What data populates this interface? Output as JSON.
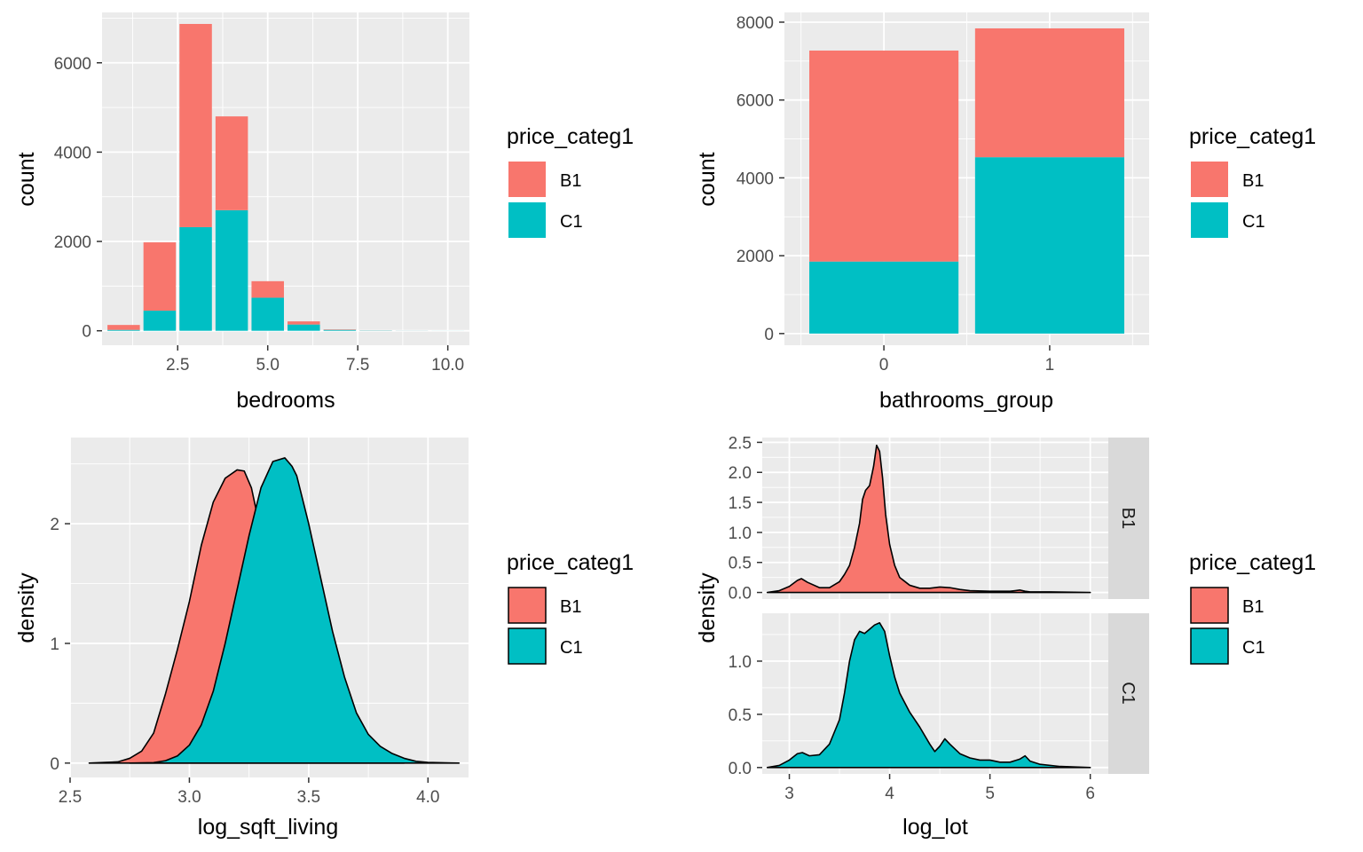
{
  "colors": {
    "B1": "#F8766D",
    "C1": "#00BFC4",
    "panel_bg": "#EBEBEB",
    "strip_bg": "#D9D9D9",
    "grid": "#FFFFFF"
  },
  "chart_data": [
    {
      "id": "bedrooms",
      "type": "bar",
      "stacked": true,
      "xlabel": "bedrooms",
      "ylabel": "count",
      "xlim": [
        0.4,
        10.6
      ],
      "ylim": [
        0,
        7200
      ],
      "x_ticks": [
        2.5,
        5.0,
        7.5,
        10.0
      ],
      "x_tick_labels": [
        "2.5",
        "5.0",
        "7.5",
        "10.0"
      ],
      "y_ticks": [
        0,
        2000,
        4000,
        6000
      ],
      "y_tick_labels": [
        "0",
        "2000",
        "4000",
        "6000"
      ],
      "x": [
        1,
        2,
        3,
        4,
        5,
        6,
        7,
        8,
        9,
        10
      ],
      "bar_width": 0.9,
      "series": [
        {
          "name": "C1",
          "values": [
            20,
            450,
            2320,
            2700,
            740,
            140,
            20,
            5,
            2,
            1
          ]
        },
        {
          "name": "B1",
          "values": [
            110,
            1530,
            4550,
            2100,
            370,
            70,
            10,
            2,
            1,
            0
          ]
        }
      ],
      "legend": {
        "title": "price_categ1",
        "entries": [
          "B1",
          "C1"
        ],
        "position": "right"
      },
      "grid": true
    },
    {
      "id": "bathrooms_group",
      "type": "bar",
      "stacked": true,
      "xlabel": "bathrooms_group",
      "ylabel": "count",
      "xlim": [
        0.4,
        2.6
      ],
      "ylim": [
        -300,
        8250
      ],
      "categories": [
        "0",
        "1"
      ],
      "x_ticks": [
        1,
        2
      ],
      "x_tick_labels": [
        "0",
        "1"
      ],
      "y_ticks": [
        0,
        2000,
        4000,
        6000,
        8000
      ],
      "y_tick_labels": [
        "0",
        "2000",
        "4000",
        "6000",
        "8000"
      ],
      "bar_width": 0.9,
      "series": [
        {
          "name": "C1",
          "values": [
            1850,
            4530
          ]
        },
        {
          "name": "B1",
          "values": [
            5420,
            3310
          ]
        }
      ],
      "legend": {
        "title": "price_categ1",
        "entries": [
          "B1",
          "C1"
        ],
        "position": "right"
      },
      "grid": true
    },
    {
      "id": "log_sqft_living",
      "type": "area",
      "subtype": "density",
      "xlabel": "log_sqft_living",
      "ylabel": "density",
      "xlim": [
        2.5,
        4.17
      ],
      "ylim": [
        -0.12,
        2.72
      ],
      "x_ticks": [
        2.5,
        3.0,
        3.5,
        4.0
      ],
      "x_tick_labels": [
        "2.5",
        "3.0",
        "3.5",
        "4.0"
      ],
      "y_ticks": [
        0,
        1,
        2
      ],
      "y_tick_labels": [
        "0",
        "1",
        "2"
      ],
      "series": [
        {
          "name": "B1",
          "x": [
            2.58,
            2.7,
            2.75,
            2.8,
            2.85,
            2.9,
            2.95,
            3.0,
            3.05,
            3.1,
            3.15,
            3.2,
            3.23,
            3.26,
            3.29,
            3.32,
            3.35,
            3.4,
            3.45,
            3.5,
            3.55,
            3.6,
            3.65,
            3.7,
            3.8,
            3.9
          ],
          "y": [
            0,
            0.01,
            0.04,
            0.1,
            0.25,
            0.58,
            0.95,
            1.35,
            1.82,
            2.18,
            2.38,
            2.45,
            2.44,
            2.3,
            2.02,
            1.55,
            1.05,
            0.55,
            0.24,
            0.1,
            0.05,
            0.02,
            0.01,
            0.005,
            0,
            0
          ]
        },
        {
          "name": "C1",
          "x": [
            2.75,
            2.85,
            2.9,
            2.95,
            3.0,
            3.05,
            3.1,
            3.15,
            3.2,
            3.25,
            3.3,
            3.35,
            3.4,
            3.43,
            3.45,
            3.5,
            3.55,
            3.6,
            3.65,
            3.7,
            3.75,
            3.8,
            3.85,
            3.9,
            3.95,
            4.0,
            4.1,
            4.13
          ],
          "y": [
            0,
            0.004,
            0.02,
            0.06,
            0.15,
            0.32,
            0.6,
            1.0,
            1.45,
            1.9,
            2.3,
            2.52,
            2.55,
            2.48,
            2.4,
            2.0,
            1.55,
            1.1,
            0.72,
            0.42,
            0.24,
            0.14,
            0.08,
            0.04,
            0.015,
            0.006,
            0.001,
            0
          ]
        }
      ],
      "legend": {
        "title": "price_categ1",
        "entries": [
          "B1",
          "C1"
        ],
        "position": "right"
      },
      "grid": true
    },
    {
      "id": "log_lot",
      "type": "area",
      "subtype": "density",
      "facets": [
        "B1",
        "C1"
      ],
      "xlabel": "log_lot",
      "ylabel": "density",
      "xlim": [
        2.73,
        6.18
      ],
      "x_ticks": [
        3,
        4,
        5,
        6
      ],
      "x_tick_labels": [
        "3",
        "4",
        "5",
        "6"
      ],
      "panels": [
        {
          "facet": "B1",
          "ylim": [
            -0.11,
            2.58
          ],
          "y_ticks": [
            0.0,
            0.5,
            1.0,
            1.5,
            2.0,
            2.5
          ],
          "y_tick_labels": [
            "0.0",
            "0.5",
            "1.0",
            "1.5",
            "2.0",
            "2.5"
          ],
          "series": {
            "name": "B1",
            "x": [
              2.78,
              2.9,
              3.0,
              3.08,
              3.12,
              3.18,
              3.3,
              3.4,
              3.5,
              3.55,
              3.6,
              3.65,
              3.7,
              3.73,
              3.76,
              3.8,
              3.84,
              3.87,
              3.9,
              3.93,
              3.96,
              4.0,
              4.05,
              4.1,
              4.2,
              4.3,
              4.4,
              4.5,
              4.6,
              4.7,
              4.8,
              5.0,
              5.2,
              5.3,
              5.35,
              5.4,
              5.6,
              6.0
            ],
            "y": [
              0,
              0.03,
              0.1,
              0.2,
              0.23,
              0.17,
              0.08,
              0.08,
              0.18,
              0.3,
              0.45,
              0.75,
              1.15,
              1.55,
              1.7,
              1.78,
              2.1,
              2.45,
              2.35,
              1.9,
              1.3,
              0.8,
              0.45,
              0.25,
              0.12,
              0.07,
              0.07,
              0.09,
              0.08,
              0.05,
              0.03,
              0.02,
              0.02,
              0.04,
              0.02,
              0.01,
              0.01,
              0
            ]
          }
        },
        {
          "facet": "C1",
          "ylim": [
            -0.06,
            1.45
          ],
          "y_ticks": [
            0.0,
            0.5,
            1.0
          ],
          "y_tick_labels": [
            "0.0",
            "0.5",
            "1.0"
          ],
          "series": {
            "name": "C1",
            "x": [
              2.78,
              2.9,
              3.0,
              3.08,
              3.13,
              3.2,
              3.3,
              3.4,
              3.5,
              3.55,
              3.6,
              3.65,
              3.7,
              3.75,
              3.8,
              3.85,
              3.9,
              3.95,
              4.0,
              4.05,
              4.1,
              4.2,
              4.3,
              4.4,
              4.45,
              4.5,
              4.55,
              4.6,
              4.7,
              4.8,
              4.9,
              5.0,
              5.1,
              5.2,
              5.3,
              5.35,
              5.4,
              5.5,
              5.7,
              6.0
            ],
            "y": [
              0,
              0.02,
              0.07,
              0.13,
              0.14,
              0.11,
              0.12,
              0.22,
              0.45,
              0.7,
              1.0,
              1.2,
              1.28,
              1.26,
              1.3,
              1.34,
              1.36,
              1.28,
              1.05,
              0.85,
              0.7,
              0.52,
              0.38,
              0.22,
              0.15,
              0.2,
              0.27,
              0.22,
              0.13,
              0.09,
              0.07,
              0.07,
              0.05,
              0.05,
              0.08,
              0.11,
              0.06,
              0.03,
              0.01,
              0
            ]
          }
        }
      ],
      "legend": {
        "title": "price_categ1",
        "entries": [
          "B1",
          "C1"
        ],
        "position": "right"
      },
      "grid": true
    }
  ]
}
